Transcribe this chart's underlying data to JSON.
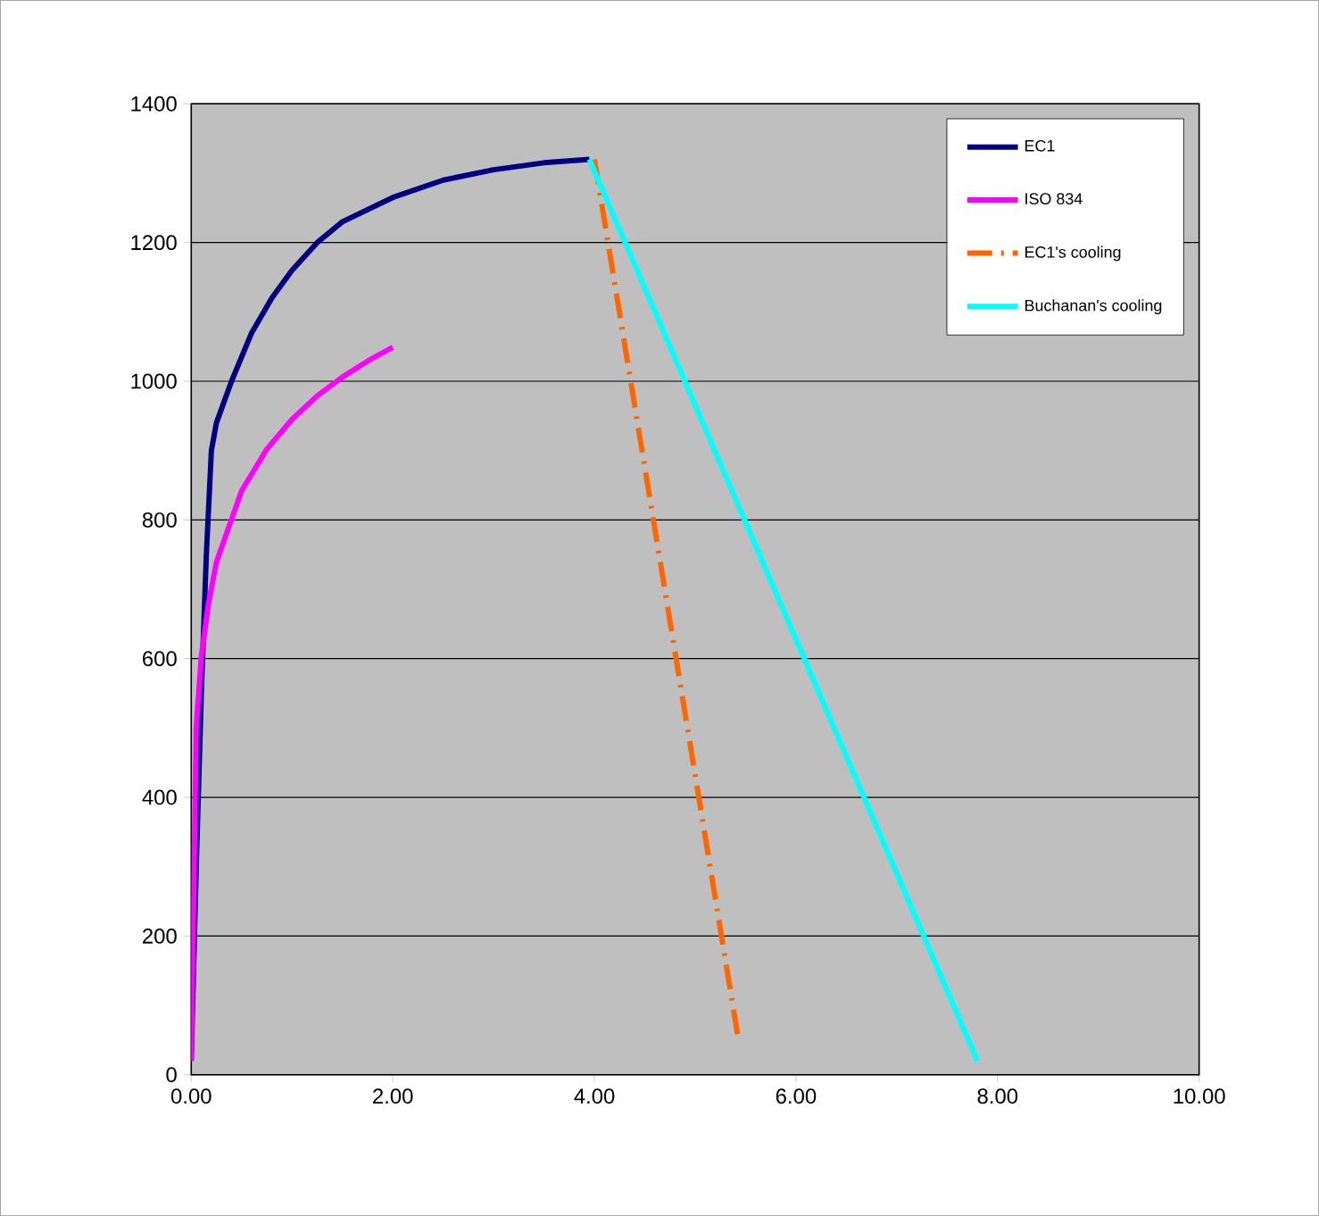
{
  "chart_data": {
    "type": "line",
    "xlim": [
      0,
      10
    ],
    "ylim": [
      0,
      1400
    ],
    "xticks": [
      {
        "value": 0,
        "label": "0.00"
      },
      {
        "value": 2,
        "label": "2.00"
      },
      {
        "value": 4,
        "label": "4.00"
      },
      {
        "value": 6,
        "label": "6.00"
      },
      {
        "value": 8,
        "label": "8.00"
      },
      {
        "value": 10,
        "label": "10.00"
      }
    ],
    "yticks": [
      0,
      200,
      400,
      600,
      800,
      1000,
      1200,
      1400
    ],
    "grid": "y",
    "legend": "top right",
    "marker": "none",
    "series": [
      {
        "name": "EC1",
        "color": "#000080",
        "x": [
          0,
          0.05,
          0.1,
          0.15,
          0.2,
          0.25,
          0.4,
          0.6,
          0.8,
          1,
          1.25,
          1.5,
          2,
          2.5,
          3,
          3.5,
          3.95
        ],
        "values": [
          20,
          300,
          550,
          750,
          900,
          940,
          1000,
          1070,
          1120,
          1160,
          1200,
          1230,
          1265,
          1290,
          1305,
          1315,
          1320
        ]
      },
      {
        "name": "ISO 834",
        "color": "#ff00ff",
        "x": [
          0,
          0.05,
          0.1,
          0.17,
          0.25,
          0.5,
          0.75,
          1,
          1.25,
          1.5,
          1.75,
          2
        ],
        "values": [
          20,
          502,
          603,
          678,
          739,
          842,
          902,
          945,
          979,
          1006,
          1029,
          1049
        ]
      },
      {
        "name": "EC1's cooling",
        "color": "#ff6600",
        "line_style": "dashdot",
        "x": [
          4,
          5.43
        ],
        "values": [
          1320,
          50
        ]
      },
      {
        "name": "Buchanan's cooling",
        "color": "#00ffff",
        "x": [
          3.95,
          7.8
        ],
        "values": [
          1320,
          20
        ]
      }
    ]
  }
}
